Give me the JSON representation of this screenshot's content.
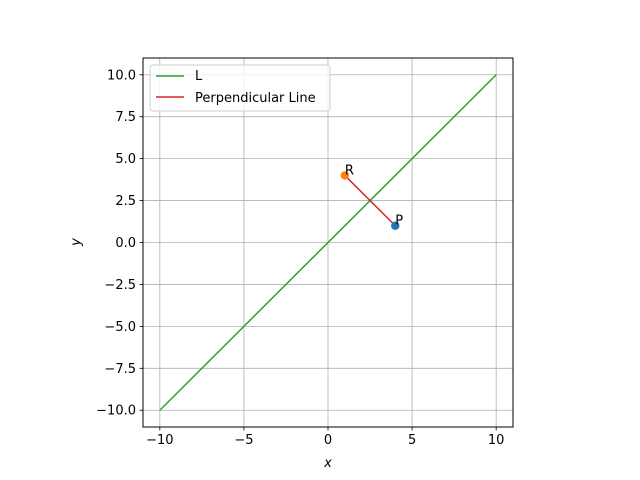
{
  "chart_data": {
    "type": "line",
    "xlabel": "x",
    "ylabel": "y",
    "xlim": [
      -11,
      11
    ],
    "ylim": [
      -11,
      11
    ],
    "grid": true,
    "legend_position": "top-left",
    "x_ticks": [
      -10,
      -5,
      0,
      5,
      10
    ],
    "x_tick_labels": [
      "−10",
      "−5",
      "0",
      "5",
      "10"
    ],
    "y_ticks": [
      -10,
      -7.5,
      -5,
      -2.5,
      0,
      2.5,
      5,
      7.5,
      10
    ],
    "y_tick_labels": [
      "−10.0",
      "−7.5",
      "−5.0",
      "−2.5",
      "0.0",
      "2.5",
      "5.0",
      "7.5",
      "10.0"
    ],
    "series": [
      {
        "name": "L",
        "color": "#2ca02c",
        "x": [
          -10,
          10
        ],
        "y": [
          -10,
          10
        ]
      },
      {
        "name": "Perpendicular Line",
        "color": "#d62728",
        "x": [
          4,
          1
        ],
        "y": [
          1,
          4
        ]
      }
    ],
    "points": [
      {
        "label": "P",
        "x": 4,
        "y": 1,
        "color": "#1f77b4"
      },
      {
        "label": "R",
        "x": 1,
        "y": 4,
        "color": "#ff7f0e"
      }
    ]
  }
}
